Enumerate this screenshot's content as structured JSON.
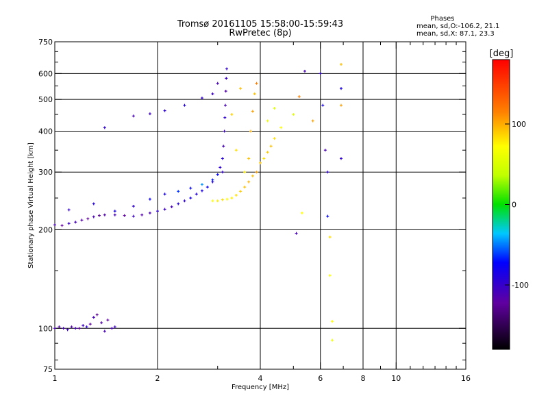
{
  "chart_data": {
    "type": "scatter",
    "title": "Tromsø 20161105 15:58:00-15:59:43",
    "subtitle": "RwPretec (8p)",
    "stats": {
      "heading": "Phases",
      "line1": "mean, sd,O:-106.2, 21.1",
      "line2": "mean, sd,X:  87.1, 23.3"
    },
    "xlabel": "Frequency [MHz]",
    "ylabel": "Stationary phase Virtual Height [km]",
    "x_scale": "log",
    "y_scale": "log",
    "xlim": [
      1,
      16
    ],
    "ylim": [
      75,
      750
    ],
    "x_ticks": [
      1,
      2,
      4,
      6,
      8,
      10,
      16
    ],
    "x_tick_labels": [
      "1",
      "2",
      "4",
      "6",
      "8",
      "10",
      "16"
    ],
    "y_ticks": [
      75,
      100,
      200,
      300,
      400,
      500,
      600,
      750
    ],
    "y_tick_labels": [
      "75",
      "100",
      "200",
      "300",
      "400",
      "500",
      "600",
      "750"
    ],
    "grid": true,
    "colorbar": {
      "label": "[deg]",
      "range": [
        -180,
        180
      ],
      "tick_values": [
        -100,
        0,
        100
      ],
      "tick_labels": [
        "-100",
        "0",
        "100"
      ]
    },
    "series": [
      {
        "points": [
          [
            1.0,
            100,
            -110
          ],
          [
            1.03,
            101,
            -115
          ],
          [
            1.06,
            100,
            -110
          ],
          [
            1.09,
            99,
            -105
          ],
          [
            1.12,
            101,
            -115
          ],
          [
            1.15,
            100,
            -110
          ],
          [
            1.18,
            100,
            -120
          ],
          [
            1.21,
            102,
            -105
          ],
          [
            1.24,
            101,
            -100
          ],
          [
            1.27,
            103,
            -120
          ],
          [
            1.3,
            108,
            -110
          ],
          [
            1.33,
            110,
            -125
          ],
          [
            1.37,
            104,
            -115
          ],
          [
            1.4,
            98,
            -110
          ],
          [
            1.43,
            106,
            -120
          ],
          [
            1.47,
            100,
            -110
          ],
          [
            1.5,
            101,
            -105
          ],
          [
            1.0,
            207,
            -110
          ],
          [
            1.05,
            206,
            -120
          ],
          [
            1.1,
            209,
            -105
          ],
          [
            1.15,
            211,
            -110
          ],
          [
            1.2,
            214,
            -115
          ],
          [
            1.25,
            216,
            -120
          ],
          [
            1.3,
            219,
            -110
          ],
          [
            1.35,
            221,
            -125
          ],
          [
            1.4,
            222,
            -115
          ],
          [
            1.5,
            222,
            -110
          ],
          [
            1.6,
            221,
            -120
          ],
          [
            1.7,
            220,
            -105
          ],
          [
            1.8,
            222,
            -115
          ],
          [
            1.9,
            225,
            -110
          ],
          [
            2.0,
            228,
            -100
          ],
          [
            2.1,
            231,
            -105
          ],
          [
            2.2,
            235,
            -110
          ],
          [
            2.3,
            240,
            -95
          ],
          [
            2.4,
            245,
            -100
          ],
          [
            2.5,
            250,
            -90
          ],
          [
            2.6,
            257,
            -95
          ],
          [
            2.7,
            263,
            -90
          ],
          [
            2.8,
            270,
            -85
          ],
          [
            2.9,
            280,
            -95
          ],
          [
            3.0,
            295,
            -80
          ],
          [
            3.05,
            310,
            -100
          ],
          [
            3.1,
            330,
            -95
          ],
          [
            3.12,
            360,
            -110
          ],
          [
            3.14,
            400,
            -105
          ],
          [
            3.15,
            440,
            -100
          ],
          [
            3.16,
            480,
            -110
          ],
          [
            3.17,
            530,
            -115
          ],
          [
            3.18,
            580,
            -105
          ],
          [
            3.19,
            620,
            -100
          ],
          [
            1.1,
            230,
            -100
          ],
          [
            1.3,
            240,
            -95
          ],
          [
            1.5,
            228,
            -90
          ],
          [
            1.7,
            236,
            -100
          ],
          [
            1.9,
            248,
            -85
          ],
          [
            2.1,
            257,
            -90
          ],
          [
            2.3,
            262,
            -70
          ],
          [
            2.5,
            268,
            -80
          ],
          [
            2.7,
            275,
            -50
          ],
          [
            2.9,
            284,
            -75
          ],
          [
            3.1,
            300,
            -100
          ],
          [
            1.4,
            410,
            -100
          ],
          [
            1.7,
            445,
            -110
          ],
          [
            1.9,
            452,
            -105
          ],
          [
            2.1,
            462,
            -100
          ],
          [
            2.4,
            480,
            -95
          ],
          [
            2.7,
            505,
            -100
          ],
          [
            2.9,
            520,
            -105
          ],
          [
            3.0,
            560,
            -110
          ]
        ]
      },
      {
        "points": [
          [
            2.9,
            245,
            80
          ],
          [
            3.0,
            245,
            85
          ],
          [
            3.1,
            247,
            90
          ],
          [
            3.2,
            248,
            80
          ],
          [
            3.3,
            250,
            85
          ],
          [
            3.4,
            255,
            90
          ],
          [
            3.5,
            262,
            95
          ],
          [
            3.6,
            270,
            100
          ],
          [
            3.7,
            280,
            105
          ],
          [
            3.8,
            292,
            100
          ],
          [
            3.9,
            300,
            110
          ],
          [
            4.0,
            320,
            100
          ],
          [
            4.1,
            330,
            90
          ],
          [
            4.2,
            345,
            95
          ],
          [
            4.3,
            360,
            100
          ],
          [
            4.4,
            380,
            90
          ],
          [
            4.6,
            410,
            80
          ],
          [
            3.7,
            330,
            100
          ],
          [
            3.75,
            400,
            105
          ],
          [
            3.8,
            460,
            110
          ],
          [
            3.85,
            520,
            100
          ],
          [
            3.9,
            560,
            120
          ],
          [
            3.4,
            350,
            90
          ],
          [
            3.3,
            450,
            95
          ],
          [
            3.5,
            540,
            100
          ],
          [
            3.6,
            300,
            85
          ],
          [
            4.2,
            430,
            70
          ],
          [
            4.4,
            470,
            60
          ],
          [
            5.0,
            450,
            60
          ],
          [
            5.2,
            510,
            120
          ]
        ]
      },
      {
        "points": [
          [
            6.0,
            600,
            -100
          ],
          [
            6.1,
            480,
            -90
          ],
          [
            6.3,
            300,
            -100
          ],
          [
            6.3,
            220,
            -80
          ],
          [
            6.4,
            190,
            90
          ],
          [
            6.4,
            145,
            80
          ],
          [
            6.5,
            105,
            80
          ],
          [
            6.5,
            92,
            70
          ],
          [
            6.9,
            640,
            100
          ],
          [
            6.9,
            540,
            -90
          ],
          [
            6.9,
            480,
            110
          ],
          [
            6.9,
            330,
            -100
          ],
          [
            5.4,
            610,
            -110
          ],
          [
            5.7,
            430,
            110
          ],
          [
            6.2,
            350,
            -110
          ],
          [
            5.1,
            195,
            -110
          ],
          [
            5.3,
            225,
            80
          ]
        ]
      }
    ]
  }
}
